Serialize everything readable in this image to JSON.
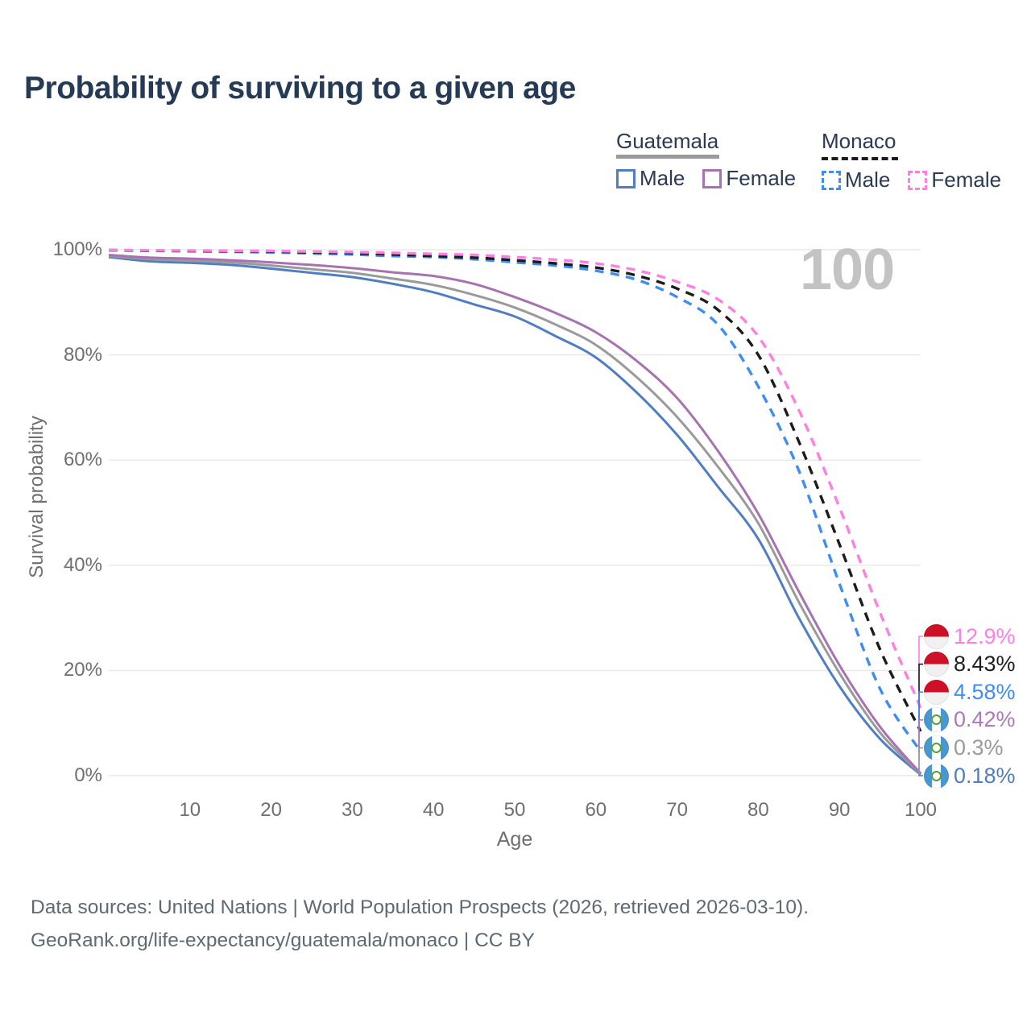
{
  "title": "Probability of surviving to a given age",
  "watermark": "100",
  "legend": {
    "groups": [
      {
        "label": "Guatemala",
        "line_style": "solid",
        "line_color": "#9a9a9a",
        "items": [
          {
            "label": "Male",
            "color": "#4f7ec2",
            "style": "solid"
          },
          {
            "label": "Female",
            "color": "#a872b2",
            "style": "solid"
          }
        ]
      },
      {
        "label": "Monaco",
        "line_style": "dashed",
        "line_color": "#1c1c1c",
        "items": [
          {
            "label": "Male",
            "color": "#3e8df2",
            "style": "dashed"
          },
          {
            "label": "Female",
            "color": "#ff7ee2",
            "style": "dashed"
          }
        ]
      }
    ]
  },
  "chart_data": {
    "type": "line",
    "title": "Probability of surviving to a given age",
    "xlabel": "Age",
    "ylabel": "Survival probability",
    "xlim": [
      0,
      100
    ],
    "ylim": [
      0,
      100
    ],
    "grid": "horizontal",
    "legend_position": "top-right",
    "x_tick_values": [
      10,
      20,
      30,
      40,
      50,
      60,
      70,
      80,
      90,
      100
    ],
    "x_tick_labels": [
      "10",
      "20",
      "30",
      "40",
      "50",
      "60",
      "70",
      "80",
      "90",
      "100"
    ],
    "y_tick_values": [
      0,
      20,
      40,
      60,
      80,
      100
    ],
    "y_tick_labels": [
      "0%",
      "20%",
      "40%",
      "60%",
      "80%",
      "100%"
    ],
    "ages": [
      0,
      5,
      10,
      15,
      20,
      25,
      30,
      35,
      40,
      45,
      50,
      55,
      60,
      65,
      70,
      75,
      80,
      85,
      90,
      95,
      100
    ],
    "series": [
      {
        "name": "Guatemala Male",
        "country": "Guatemala",
        "sex": "Male",
        "color": "#4f7ec2",
        "dash": "solid",
        "end_label": "0.18%",
        "end_value": 0.18,
        "values": [
          98.6,
          97.8,
          97.5,
          97.1,
          96.4,
          95.6,
          94.8,
          93.5,
          91.9,
          89.6,
          87.3,
          83.6,
          79.5,
          72.9,
          64.8,
          55.0,
          45.0,
          30.0,
          17.0,
          7.0,
          0.18
        ]
      },
      {
        "name": "Guatemala All",
        "country": "Guatemala",
        "sex": "Both",
        "color": "#9a9a9a",
        "dash": "solid",
        "end_label": "0.3%",
        "end_value": 0.3,
        "values": [
          98.8,
          98.2,
          97.9,
          97.6,
          97.0,
          96.3,
          95.6,
          94.5,
          93.3,
          91.4,
          89.0,
          85.8,
          81.9,
          75.8,
          68.2,
          58.8,
          48.0,
          33.0,
          19.5,
          8.2,
          0.3
        ]
      },
      {
        "name": "Guatemala Female",
        "country": "Guatemala",
        "sex": "Female",
        "color": "#a872b2",
        "dash": "solid",
        "end_label": "0.42%",
        "end_value": 0.42,
        "values": [
          99.0,
          98.5,
          98.3,
          98.0,
          97.6,
          97.1,
          96.5,
          95.7,
          95.0,
          93.5,
          91.0,
          88.0,
          84.3,
          78.9,
          71.8,
          61.8,
          49.8,
          35.0,
          21.0,
          9.3,
          0.42
        ]
      },
      {
        "name": "Monaco Male",
        "country": "Monaco",
        "sex": "Male",
        "color": "#3e8df2",
        "dash": "dashed",
        "end_label": "4.58%",
        "end_value": 4.58,
        "values": [
          99.9,
          99.8,
          99.7,
          99.6,
          99.5,
          99.3,
          99.1,
          98.8,
          98.6,
          98.2,
          97.6,
          97.0,
          96.0,
          94.3,
          91.0,
          85.8,
          74.0,
          58.0,
          36.5,
          16.5,
          4.58
        ]
      },
      {
        "name": "Monaco All",
        "country": "Monaco",
        "sex": "Both",
        "color": "#1c1c1c",
        "dash": "dashed",
        "end_label": "8.43%",
        "end_value": 8.43,
        "values": [
          99.92,
          99.85,
          99.8,
          99.75,
          99.65,
          99.5,
          99.35,
          99.1,
          98.8,
          98.5,
          98.0,
          97.4,
          96.6,
          95.1,
          92.6,
          88.6,
          80.0,
          63.5,
          44.0,
          24.0,
          8.43
        ]
      },
      {
        "name": "Monaco Female",
        "country": "Monaco",
        "sex": "Female",
        "color": "#ff7ee2",
        "dash": "dashed",
        "end_label": "12.9%",
        "end_value": 12.9,
        "values": [
          99.95,
          99.9,
          99.85,
          99.8,
          99.75,
          99.65,
          99.55,
          99.4,
          99.2,
          99.0,
          98.6,
          98.1,
          97.4,
          96.1,
          93.9,
          90.6,
          83.5,
          69.5,
          51.0,
          31.0,
          12.9
        ]
      }
    ]
  },
  "end_labels": [
    {
      "country": "Monaco",
      "series": "Monaco Female",
      "value": "12.9%",
      "value_num": 12.9,
      "color": "#ff7ee2"
    },
    {
      "country": "Monaco",
      "series": "Monaco All",
      "value": "8.43%",
      "value_num": 8.43,
      "color": "#1f1f1f"
    },
    {
      "country": "Monaco",
      "series": "Monaco Male",
      "value": "4.58%",
      "value_num": 4.58,
      "color": "#3e8df2"
    },
    {
      "country": "Guatemala",
      "series": "Guatemala Female",
      "value": "0.42%",
      "value_num": 0.42,
      "color": "#b077ba"
    },
    {
      "country": "Guatemala",
      "series": "Guatemala All",
      "value": "0.3%",
      "value_num": 0.3,
      "color": "#9a9a9a"
    },
    {
      "country": "Guatemala",
      "series": "Guatemala Male",
      "value": "0.18%",
      "value_num": 0.18,
      "color": "#4f7ec2"
    }
  ],
  "footer": {
    "line1": "Data sources: United Nations | World Population Prospects (2026, retrieved 2026-03-10).",
    "line2": "GeoRank.org/life-expectancy/guatemala/monaco | CC BY"
  },
  "colors": {
    "background": "#ffffff",
    "title": "#243a55",
    "legend_text": "#2b3a55",
    "tick_label": "#6f6f6f",
    "watermark": "#c3c3c3",
    "footer": "#5d6a75",
    "gridline": "#e8e8e8",
    "monaco_flag_red": "#CE1126",
    "monaco_flag_white": "#f1f1f1",
    "guatemala_flag_blue": "#4997D0",
    "guatemala_flag_white": "#ffffff",
    "guatemala_emblem_green": "#5c9e31"
  }
}
